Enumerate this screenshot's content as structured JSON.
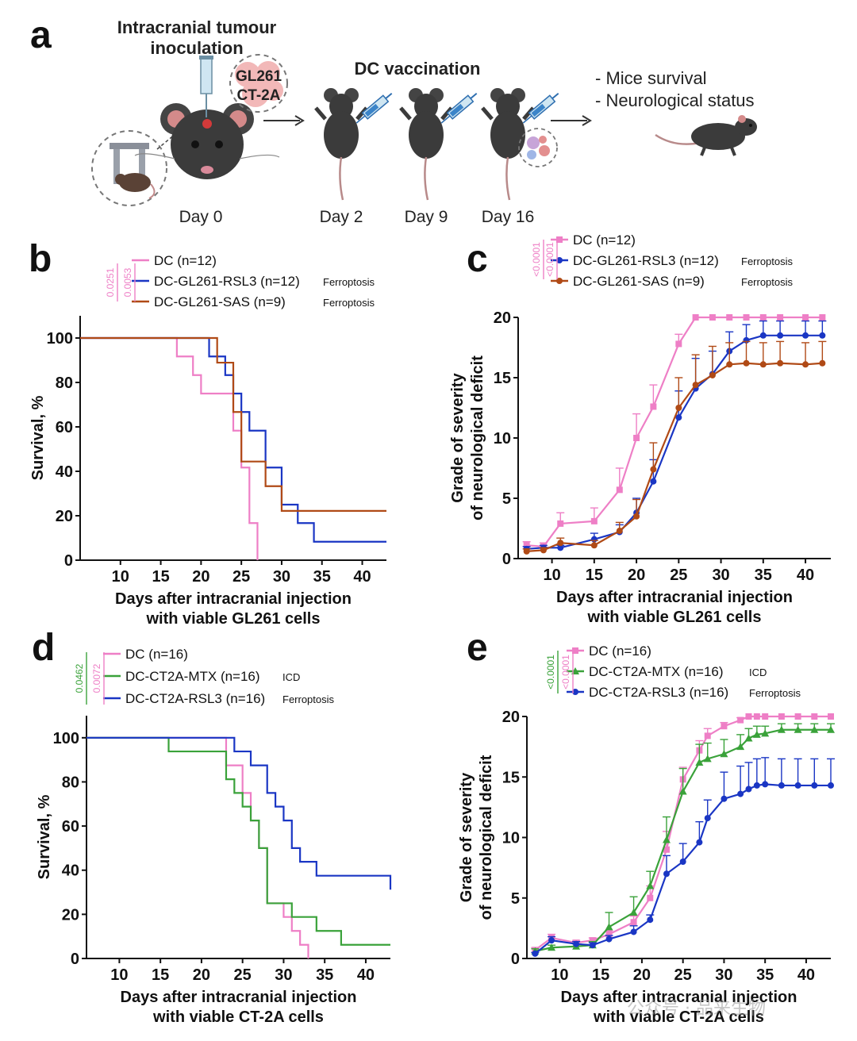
{
  "colors": {
    "pink": "#ee7fc6",
    "blue": "#1a36c4",
    "brown": "#b04a16",
    "green": "#3aa23a"
  },
  "panel_a": {
    "label": "a",
    "title_lines": [
      "Intracranial tumour",
      "inoculation"
    ],
    "cells_lines": [
      "GL261",
      "CT-2A"
    ],
    "vaccination": "DC vaccination",
    "days": [
      "Day 0",
      "Day 2",
      "Day 9",
      "Day 16"
    ],
    "outcomes": [
      "- Mice survival",
      "- Neurological status"
    ]
  },
  "chart_data": [
    {
      "panel": "b",
      "type": "line",
      "subtype": "kaplan-meier",
      "xlabel": [
        "Days after intracranial injection",
        "with viable GL261 cells"
      ],
      "ylabel": "Survival, %",
      "xlim": [
        5,
        43
      ],
      "ylim": [
        0,
        110
      ],
      "xticks": [
        10,
        15,
        20,
        25,
        30,
        35,
        40
      ],
      "yticks": [
        0,
        20,
        40,
        60,
        80,
        100
      ],
      "pvalues": [
        {
          "text": "0.0251",
          "color": "pink"
        },
        {
          "text": "0.0053",
          "color": "pink"
        }
      ],
      "series": [
        {
          "name": "DC (n=12)",
          "color": "pink",
          "tag": "",
          "x": [
            5,
            17,
            19,
            20,
            24,
            25,
            26,
            27
          ],
          "y": [
            100,
            91.7,
            83.3,
            75,
            58.3,
            41.7,
            16.7,
            0
          ]
        },
        {
          "name": "DC-GL261-RSL3 (n=12)",
          "color": "blue",
          "tag": "Ferroptosis",
          "x": [
            5,
            21,
            23,
            24,
            25,
            26,
            28,
            30,
            32,
            34,
            43
          ],
          "y": [
            100,
            91.7,
            83.3,
            75,
            66.7,
            58.3,
            41.7,
            25,
            16.7,
            8.3,
            8.3
          ]
        },
        {
          "name": "DC-GL261-SAS (n=9)",
          "color": "brown",
          "tag": "Ferroptosis",
          "x": [
            5,
            22,
            24,
            25,
            28,
            30,
            43
          ],
          "y": [
            100,
            88.9,
            66.7,
            44.4,
            33.3,
            22.2,
            22.2
          ]
        }
      ]
    },
    {
      "panel": "c",
      "type": "line",
      "subtype": "errorbar",
      "xlabel": [
        "Days after intracranial injection",
        "with viable GL261 cells"
      ],
      "ylabel": [
        "Grade of severity",
        "of neurological deficit"
      ],
      "xlim": [
        6,
        43
      ],
      "ylim": [
        0,
        20
      ],
      "xticks": [
        10,
        15,
        20,
        25,
        30,
        35,
        40
      ],
      "yticks": [
        0,
        5,
        10,
        15,
        20
      ],
      "pvalues": [
        {
          "text": "<0.0001",
          "color": "pink"
        },
        {
          "text": "<0.0001",
          "color": "pink"
        }
      ],
      "series": [
        {
          "name": "DC (n=12)",
          "color": "pink",
          "marker": "square",
          "tag": "",
          "x": [
            7,
            9,
            11,
            15,
            18,
            20,
            22,
            25,
            27,
            29,
            31,
            33,
            35,
            37,
            40,
            42
          ],
          "y": [
            1.1,
            1.0,
            2.9,
            3.1,
            5.7,
            10,
            12.6,
            17.8,
            20,
            20,
            20,
            20,
            20,
            20,
            20,
            20
          ],
          "err": [
            0.3,
            0.3,
            0.9,
            1.1,
            1.8,
            2.0,
            1.8,
            0.8,
            0,
            0,
            0,
            0,
            0,
            0,
            0,
            0
          ]
        },
        {
          "name": "DC-GL261-RSL3 (n=12)",
          "color": "blue",
          "marker": "circle",
          "tag": "Ferroptosis",
          "x": [
            7,
            9,
            11,
            15,
            18,
            20,
            22,
            25,
            27,
            29,
            31,
            33,
            35,
            37,
            40,
            42
          ],
          "y": [
            0.8,
            0.9,
            0.9,
            1.6,
            2.2,
            3.8,
            6.4,
            11.7,
            14.1,
            15.3,
            17.2,
            18.1,
            18.5,
            18.5,
            18.5,
            18.5
          ],
          "err": [
            0.2,
            0.2,
            0.2,
            0.5,
            0.6,
            1.2,
            1.8,
            2.2,
            2.5,
            1.9,
            1.6,
            1.3,
            1.2,
            1.2,
            1.2,
            1.2
          ]
        },
        {
          "name": "DC-GL261-SAS (n=9)",
          "color": "brown",
          "marker": "circle",
          "tag": "Ferroptosis",
          "x": [
            7,
            9,
            11,
            15,
            18,
            20,
            22,
            25,
            27,
            29,
            31,
            33,
            35,
            37,
            40,
            42
          ],
          "y": [
            0.6,
            0.7,
            1.3,
            1.1,
            2.3,
            3.5,
            7.4,
            12.5,
            14.4,
            15.2,
            16.1,
            16.2,
            16.1,
            16.2,
            16.1,
            16.2
          ],
          "err": [
            0.2,
            0.2,
            0.4,
            0.4,
            0.7,
            1.4,
            2.2,
            2.5,
            2.5,
            2.4,
            1.8,
            1.8,
            1.8,
            1.8,
            1.8,
            1.8
          ]
        }
      ]
    },
    {
      "panel": "d",
      "type": "line",
      "subtype": "kaplan-meier",
      "xlabel": [
        "Days after intracranial injection",
        "with viable CT-2A cells"
      ],
      "ylabel": "Survival, %",
      "xlim": [
        6,
        43
      ],
      "ylim": [
        0,
        110
      ],
      "xticks": [
        10,
        15,
        20,
        25,
        30,
        35,
        40
      ],
      "yticks": [
        0,
        20,
        40,
        60,
        80,
        100
      ],
      "pvalues": [
        {
          "text": "0.0462",
          "color": "green"
        },
        {
          "text": "0.0072",
          "color": "pink"
        }
      ],
      "series": [
        {
          "name": "DC (n=16)",
          "color": "pink",
          "tag": "",
          "x": [
            6,
            23,
            25,
            26,
            27,
            28,
            30,
            31,
            32,
            33
          ],
          "y": [
            100,
            87.5,
            75,
            62.5,
            50,
            25,
            18.8,
            12.5,
            6.2,
            0
          ]
        },
        {
          "name": "DC-CT2A-MTX (n=16)",
          "color": "green",
          "tag": "ICD",
          "x": [
            6,
            16,
            23,
            24,
            25,
            26,
            27,
            28,
            31,
            34,
            37,
            43
          ],
          "y": [
            100,
            93.8,
            81.2,
            75,
            68.8,
            62.5,
            50,
            25,
            18.8,
            12.5,
            6.2,
            6.2
          ]
        },
        {
          "name": "DC-CT2A-RSL3 (n=16)",
          "color": "blue",
          "tag": "Ferroptosis",
          "x": [
            6,
            24,
            26,
            28,
            29,
            30,
            31,
            32,
            34,
            43
          ],
          "y": [
            100,
            93.8,
            87.5,
            75,
            68.8,
            62.5,
            50,
            43.8,
            37.5,
            31.2
          ]
        }
      ]
    },
    {
      "panel": "e",
      "type": "line",
      "subtype": "errorbar",
      "xlabel": [
        "Days after intracranial injection",
        "with viable CT-2A cells"
      ],
      "ylabel": [
        "Grade of severity",
        "of neurological deficit"
      ],
      "xlim": [
        6,
        43
      ],
      "ylim": [
        0,
        20
      ],
      "xticks": [
        10,
        15,
        20,
        25,
        30,
        35,
        40
      ],
      "yticks": [
        0,
        5,
        10,
        15,
        20
      ],
      "pvalues": [
        {
          "text": "<0.0001",
          "color": "green"
        },
        {
          "text": "<0.0001",
          "color": "pink"
        }
      ],
      "series": [
        {
          "name": "DC (n=16)",
          "color": "pink",
          "marker": "square",
          "tag": "",
          "x": [
            7,
            9,
            12,
            14,
            16,
            19,
            21,
            23,
            25,
            27,
            28,
            30,
            32,
            33,
            34,
            35,
            37,
            39,
            41,
            43
          ],
          "y": [
            0.7,
            1.7,
            1.3,
            1.5,
            2.0,
            3.0,
            5.0,
            9.0,
            14.8,
            17.2,
            18.4,
            19.2,
            19.7,
            20,
            20,
            20,
            20,
            20,
            20,
            20
          ],
          "err": [
            0.2,
            0.3,
            0.2,
            0.2,
            0.3,
            0.5,
            1.0,
            1.5,
            1.0,
            0.8,
            0.6,
            0.3,
            0.2,
            0,
            0,
            0,
            0,
            0,
            0,
            0
          ]
        },
        {
          "name": "DC-CT2A-MTX (n=16)",
          "color": "green",
          "marker": "triangle",
          "tag": "ICD",
          "x": [
            7,
            9,
            12,
            14,
            16,
            19,
            21,
            23,
            25,
            27,
            28,
            30,
            32,
            33,
            34,
            35,
            37,
            39,
            41,
            43
          ],
          "y": [
            0.6,
            0.9,
            1.0,
            1.1,
            2.6,
            3.8,
            6.0,
            9.8,
            13.8,
            16.2,
            16.5,
            16.9,
            17.5,
            18.2,
            18.5,
            18.6,
            18.9,
            18.9,
            18.9,
            18.9
          ],
          "err": [
            0.2,
            0.2,
            0.2,
            0.3,
            1.2,
            1.3,
            1.2,
            1.9,
            1.9,
            1.5,
            1.3,
            1.2,
            1.0,
            0.8,
            0.7,
            0.6,
            0.5,
            0.5,
            0.5,
            0.5
          ]
        },
        {
          "name": "DC-CT2A-RSL3 (n=16)",
          "color": "blue",
          "marker": "circle",
          "tag": "Ferroptosis",
          "x": [
            7,
            9,
            12,
            14,
            16,
            19,
            21,
            23,
            25,
            27,
            28,
            30,
            32,
            33,
            34,
            35,
            37,
            39,
            41,
            43
          ],
          "y": [
            0.4,
            1.5,
            1.2,
            1.1,
            1.6,
            2.2,
            3.2,
            7.0,
            8.0,
            9.6,
            11.6,
            13.2,
            13.6,
            14.0,
            14.3,
            14.4,
            14.3,
            14.3,
            14.3,
            14.3
          ],
          "err": [
            0.1,
            0.3,
            0.2,
            0.2,
            0.3,
            0.5,
            0.4,
            1.5,
            1.5,
            1.7,
            1.5,
            2.2,
            2.3,
            2.2,
            2.2,
            2.2,
            2.2,
            2.2,
            2.2,
            2.2
          ]
        }
      ]
    }
  ],
  "watermark": "公众号 · 品来生物"
}
